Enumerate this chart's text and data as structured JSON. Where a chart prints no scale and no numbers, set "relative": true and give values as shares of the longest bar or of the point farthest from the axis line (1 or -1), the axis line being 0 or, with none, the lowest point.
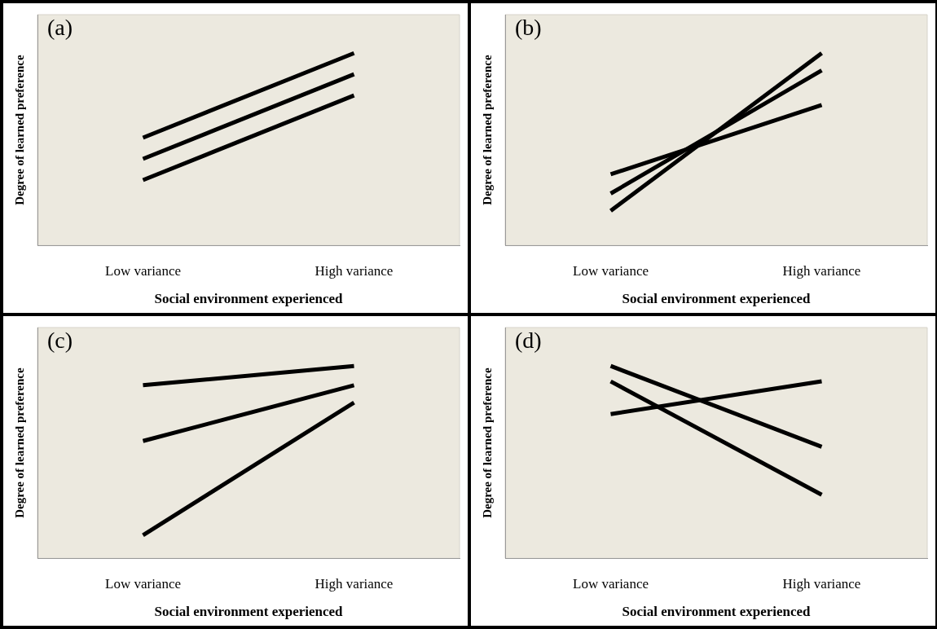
{
  "chart_data": [
    {
      "type": "line",
      "annotations": [
        "(a)"
      ],
      "xlabel": "Social environment experienced",
      "ylabel": "Degree of learned preference",
      "categories": [
        "Low variance",
        "High variance"
      ],
      "relative": true,
      "tick_labels": "x",
      "grid": false,
      "legend": false,
      "marker": "none",
      "line_style": "solid",
      "series": [
        {
          "color": "#000000",
          "values": [
            0.56,
            1
          ]
        },
        {
          "color": "#000000",
          "values": [
            0.45,
            0.89
          ]
        },
        {
          "color": "#000000",
          "values": [
            0.34,
            0.78
          ]
        }
      ]
    },
    {
      "type": "line",
      "annotations": [
        "(b)"
      ],
      "xlabel": "Social environment experienced",
      "ylabel": "Degree of learned preference",
      "categories": [
        "Low variance",
        "High variance"
      ],
      "relative": true,
      "tick_labels": "x",
      "grid": false,
      "legend": false,
      "marker": "none",
      "line_style": "solid",
      "series": [
        {
          "color": "#000000",
          "values": [
            0.37,
            0.73
          ]
        },
        {
          "color": "#000000",
          "values": [
            0.27,
            0.91
          ]
        },
        {
          "color": "#000000",
          "values": [
            0.18,
            1
          ]
        }
      ]
    },
    {
      "type": "line",
      "annotations": [
        "(c)"
      ],
      "xlabel": "Social environment experienced",
      "ylabel": "Degree of learned preference",
      "categories": [
        "Low variance",
        "High variance"
      ],
      "relative": true,
      "tick_labels": "x",
      "grid": false,
      "legend": false,
      "marker": "none",
      "line_style": "solid",
      "series": [
        {
          "color": "#000000",
          "values": [
            0.9,
            1
          ]
        },
        {
          "color": "#000000",
          "values": [
            0.61,
            0.9
          ]
        },
        {
          "color": "#000000",
          "values": [
            0.12,
            0.81
          ]
        }
      ]
    },
    {
      "type": "line",
      "annotations": [
        "(d)"
      ],
      "xlabel": "Social environment experienced",
      "ylabel": "Degree of learned preference",
      "categories": [
        "Low variance",
        "High variance"
      ],
      "relative": true,
      "tick_labels": "x",
      "grid": false,
      "legend": false,
      "marker": "none",
      "line_style": "solid",
      "series": [
        {
          "color": "#000000",
          "values": [
            1,
            0.58
          ]
        },
        {
          "color": "#000000",
          "values": [
            0.92,
            0.33
          ]
        },
        {
          "color": "#000000",
          "values": [
            0.75,
            0.92
          ]
        }
      ]
    }
  ]
}
